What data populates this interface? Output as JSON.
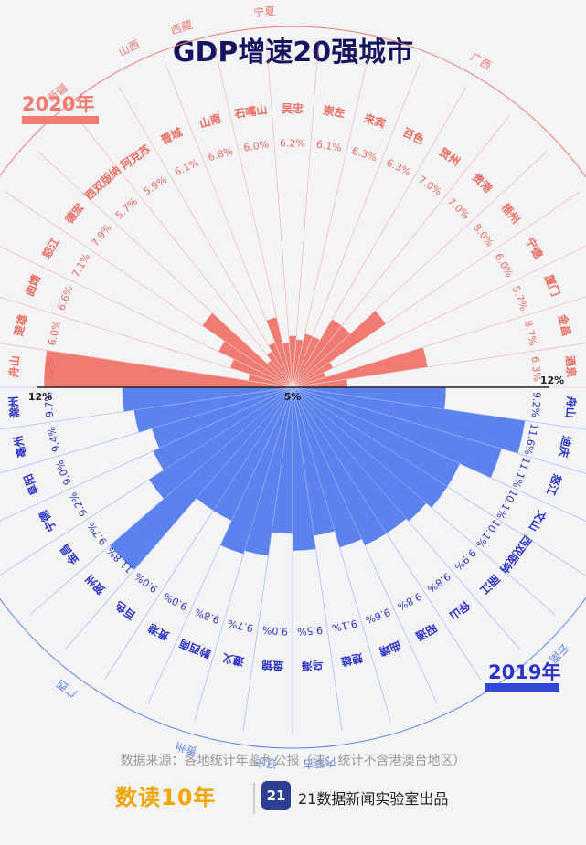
{
  "title": "GDP增速20强城市",
  "source": "数据来源：各地统计年鉴和公报（注：统计不含港澳台地区）",
  "brand": {
    "logo": "数读10年",
    "badge": "21",
    "text": "21数据新闻实验室出品"
  },
  "colors": {
    "top": "#f07b72",
    "bottom": "#5c82ee",
    "top_text": "#ee6b60",
    "bottom_text": "#2b33c9"
  },
  "chart_data": [
    {
      "type": "bar",
      "label": "2020年",
      "axis": {
        "min_label": "5%",
        "max_label": "12%",
        "min": 5,
        "max": 12
      },
      "categories": [
        "舟山",
        "楚雄",
        "曲靖",
        "怒江",
        "德宏",
        "西双版纳",
        "阿克苏",
        "晋城",
        "山南",
        "石嘴山",
        "吴忠",
        "崇左",
        "来宾",
        "百色",
        "贺州",
        "贵港",
        "梧州",
        "宁德",
        "厦门",
        "金昌",
        "酒泉"
      ],
      "value_labels": [
        "12%",
        "6.0%",
        "6.6%",
        "7.1%",
        "7.9%",
        "5.7%",
        "5.9%",
        "6.1%",
        "6.8%",
        "6.0%",
        "6.2%",
        "6.1%",
        "6.3%",
        "6.3%",
        "7.0%",
        "7.0%",
        "8.0%",
        "6.0%",
        "5.7%",
        "8.7%",
        "6.3%"
      ],
      "values": [
        12,
        6.0,
        6.6,
        7.1,
        7.9,
        5.7,
        5.9,
        6.1,
        6.8,
        6.0,
        6.2,
        6.1,
        6.3,
        6.3,
        7.0,
        7.0,
        8.0,
        6.0,
        5.7,
        8.7,
        6.3
      ],
      "provinces": [
        {
          "name": "浙江",
          "from": 0,
          "to": 0
        },
        {
          "name": "云南",
          "from": 1,
          "to": 4
        },
        {
          "name": "新疆",
          "from": 5,
          "to": 6
        },
        {
          "name": "山西",
          "from": 7,
          "to": 7
        },
        {
          "name": "西藏",
          "from": 8,
          "to": 8
        },
        {
          "name": "宁夏",
          "from": 9,
          "to": 10
        },
        {
          "name": "广西",
          "from": 11,
          "to": 16
        },
        {
          "name": "福建",
          "from": 17,
          "to": 18
        },
        {
          "name": "甘肃",
          "from": 19,
          "to": 20
        }
      ]
    },
    {
      "type": "bar",
      "label": "2019年",
      "axis": {
        "min": 5,
        "max": 12
      },
      "categories": [
        "滁州",
        "亳州",
        "阜阳",
        "宁德",
        "金昌",
        "贺州",
        "百色",
        "贵港",
        "黔西南",
        "遵义",
        "盘锦",
        "乌海",
        "楚雄",
        "曲靖",
        "昭通",
        "保山",
        "丽江",
        "西双版纳",
        "文山",
        "怒江",
        "迪庆",
        "舟山"
      ],
      "value_labels": [
        "9.7%",
        "9.4%",
        "9.0%",
        "9.2%",
        "9.7%",
        "11.8%",
        "9.0%",
        "9.0%",
        "9.8%",
        "9.7%",
        "9.0%",
        "9.5%",
        "9.1%",
        "9.6%",
        "9.8%",
        "9.8%",
        "9.9%",
        "10.1%",
        "10.1%",
        "11.1%",
        "11.6%",
        "9.2%"
      ],
      "values": [
        9.7,
        9.4,
        9.0,
        9.2,
        9.7,
        11.8,
        9.0,
        9.0,
        9.8,
        9.7,
        9.0,
        9.5,
        9.1,
        9.6,
        9.8,
        9.8,
        9.9,
        10.1,
        10.1,
        11.1,
        11.6,
        9.2
      ],
      "provinces": [
        {
          "name": "安徽",
          "from": 0,
          "to": 2
        },
        {
          "name": "福建",
          "from": 3,
          "to": 3
        },
        {
          "name": "甘肃",
          "from": 4,
          "to": 4
        },
        {
          "name": "广西",
          "from": 5,
          "to": 7
        },
        {
          "name": "贵州",
          "from": 8,
          "to": 9
        },
        {
          "name": "辽宁",
          "from": 10,
          "to": 10
        },
        {
          "name": "内蒙古",
          "from": 11,
          "to": 11
        },
        {
          "name": "云南",
          "from": 12,
          "to": 20
        },
        {
          "name": "浙江",
          "from": 21,
          "to": 21
        }
      ]
    }
  ]
}
